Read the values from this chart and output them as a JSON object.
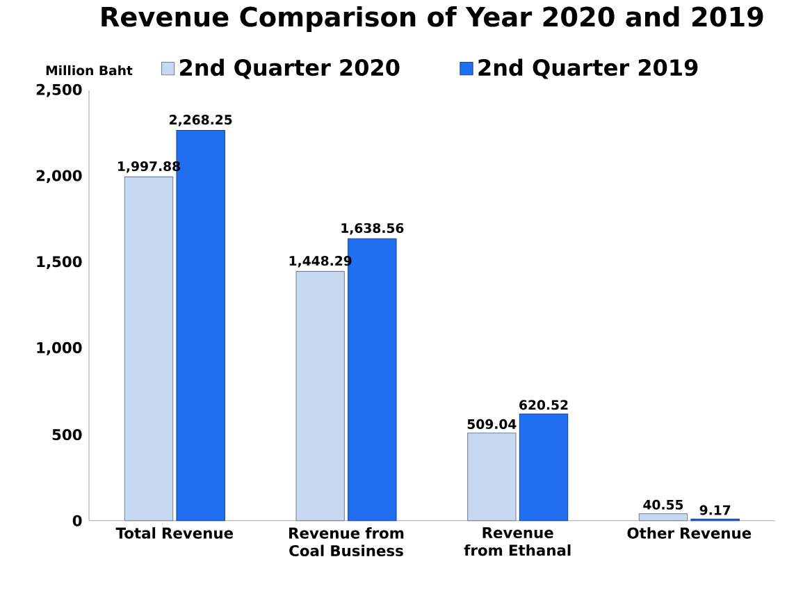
{
  "chart_data": {
    "type": "bar",
    "title": "Revenue Comparison of Year 2020 and 2019",
    "ylabel": "Million Baht",
    "categories": [
      "Total Revenue",
      "Revenue from Coal Business",
      "Revenue from Ethanal",
      "Other Revenue"
    ],
    "series": [
      {
        "name": "2nd Quarter 2020",
        "color": "#c6d9f0",
        "values": [
          1997.88,
          1448.29,
          509.04,
          40.55
        ],
        "value_labels": [
          "1,997.88",
          "1,448.29",
          "509.04",
          "40.55"
        ]
      },
      {
        "name": "2nd Quarter 2019",
        "color": "#1f6ff0",
        "values": [
          2268.25,
          1638.56,
          620.52,
          9.17
        ],
        "value_labels": [
          "2,268.25",
          "1,638.56",
          "620.52",
          "9.17"
        ]
      }
    ],
    "ylim": [
      0,
      2500
    ],
    "yticks": [
      0,
      500,
      {
        "value": 1000,
        "label": "1,000"
      },
      {
        "value": 1500,
        "label": "1,500"
      },
      {
        "value": 2000,
        "label": "2,000"
      },
      {
        "value": 2500,
        "label": "2,500"
      }
    ],
    "grid": false,
    "legend": "top"
  }
}
